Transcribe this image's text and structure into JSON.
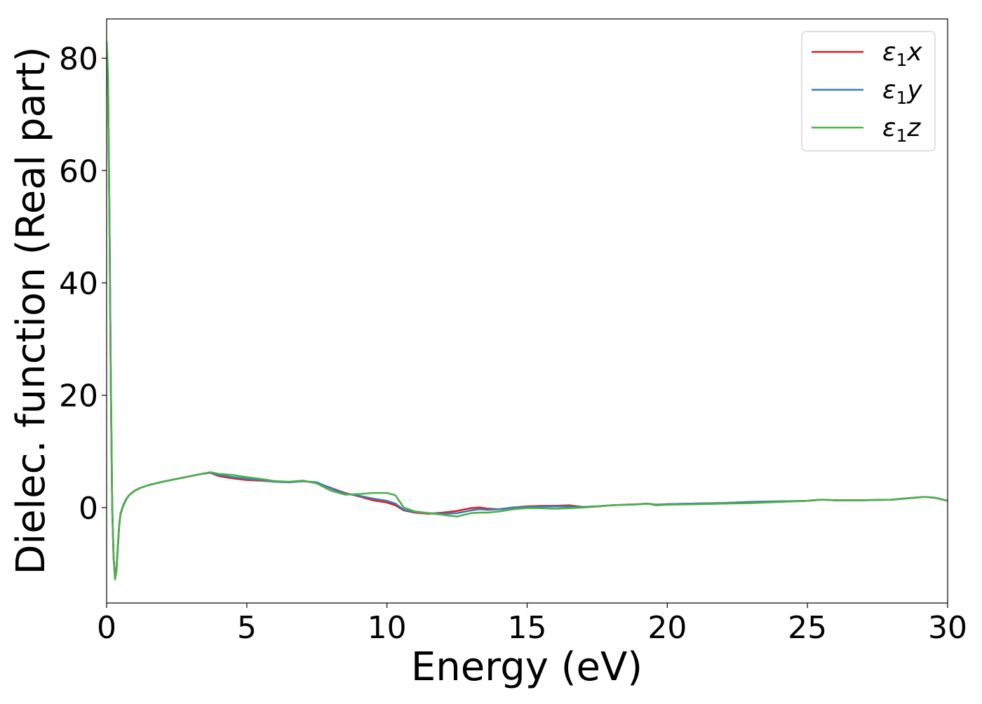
{
  "chart_data": {
    "type": "line",
    "xlabel": "Energy (eV)",
    "ylabel": "Dielec. function (Real part)",
    "xlim": [
      0,
      30
    ],
    "ylim": [
      -17,
      87
    ],
    "xticks": [
      0,
      5,
      10,
      15,
      20,
      25,
      30
    ],
    "yticks": [
      0,
      20,
      40,
      60,
      80
    ],
    "grid": false,
    "legend_position": "top-right",
    "series": [
      {
        "name": "ε₁x",
        "legend": {
          "main": "ε",
          "sub": "1",
          "tail": "x"
        },
        "color": "#e41a1c",
        "x": [
          0.0,
          0.05,
          0.1,
          0.15,
          0.2,
          0.25,
          0.3,
          0.35,
          0.4,
          0.45,
          0.5,
          0.6,
          0.7,
          0.8,
          1.0,
          1.2,
          1.5,
          2.0,
          2.5,
          3.0,
          3.4,
          3.7,
          4.0,
          4.5,
          5.0,
          5.5,
          6.0,
          6.5,
          7.0,
          7.5,
          8.0,
          8.5,
          9.0,
          9.5,
          10.0,
          10.3,
          10.6,
          11.0,
          11.5,
          12.0,
          12.5,
          13.0,
          13.3,
          13.6,
          14.0,
          14.5,
          15.0,
          15.5,
          16.0,
          16.5,
          17.0,
          17.5,
          18.0,
          18.5,
          19.0,
          19.3,
          19.6,
          20.0,
          21.0,
          22.0,
          23.0,
          24.0,
          25.0,
          25.5,
          26.0,
          27.0,
          28.0,
          28.7,
          29.2,
          29.6,
          30.0
        ],
        "y": [
          82,
          76,
          52,
          22,
          0,
          -9,
          -12.5,
          -11,
          -7,
          -3,
          -1,
          0.5,
          1.5,
          2.2,
          3.0,
          3.5,
          4.0,
          4.6,
          5.1,
          5.6,
          6.0,
          6.2,
          5.6,
          5.2,
          4.9,
          4.8,
          4.6,
          4.5,
          4.7,
          4.4,
          3.5,
          2.6,
          2.0,
          1.3,
          0.9,
          0.4,
          -0.5,
          -0.9,
          -1.1,
          -0.9,
          -0.6,
          -0.1,
          0.0,
          -0.2,
          -0.3,
          0.0,
          0.2,
          0.3,
          0.3,
          0.4,
          0.1,
          0.2,
          0.4,
          0.5,
          0.6,
          0.7,
          0.5,
          0.6,
          0.7,
          0.8,
          1.0,
          1.1,
          1.2,
          1.4,
          1.3,
          1.3,
          1.4,
          1.7,
          1.9,
          1.7,
          1.2
        ]
      },
      {
        "name": "ε₁y",
        "legend": {
          "main": "ε",
          "sub": "1",
          "tail": "y"
        },
        "color": "#377eb8",
        "x": [
          0.0,
          0.05,
          0.1,
          0.15,
          0.2,
          0.25,
          0.3,
          0.35,
          0.4,
          0.45,
          0.5,
          0.6,
          0.7,
          0.8,
          1.0,
          1.2,
          1.5,
          2.0,
          2.5,
          3.0,
          3.4,
          3.7,
          4.0,
          4.5,
          5.0,
          5.5,
          6.0,
          6.5,
          7.0,
          7.5,
          8.0,
          8.5,
          9.0,
          9.5,
          10.0,
          10.3,
          10.6,
          11.0,
          11.5,
          12.0,
          12.5,
          13.0,
          13.3,
          13.6,
          14.0,
          14.5,
          15.0,
          15.5,
          16.0,
          16.5,
          17.0,
          17.5,
          18.0,
          18.5,
          19.0,
          19.3,
          19.6,
          20.0,
          21.0,
          22.0,
          23.0,
          24.0,
          25.0,
          25.5,
          26.0,
          27.0,
          28.0,
          28.7,
          29.2,
          29.6,
          30.0
        ],
        "y": [
          82,
          76,
          52,
          22,
          0,
          -9,
          -12.5,
          -11,
          -7,
          -3,
          -1,
          0.5,
          1.5,
          2.2,
          3.0,
          3.5,
          4.0,
          4.6,
          5.1,
          5.6,
          6.0,
          6.2,
          5.8,
          5.4,
          5.1,
          4.9,
          4.6,
          4.5,
          4.7,
          4.5,
          3.4,
          2.5,
          2.1,
          1.6,
          1.2,
          0.7,
          -0.4,
          -0.8,
          -1.0,
          -1.1,
          -1.0,
          -0.5,
          -0.3,
          -0.4,
          -0.3,
          0.0,
          0.1,
          0.2,
          0.2,
          0.2,
          0.1,
          0.2,
          0.4,
          0.5,
          0.6,
          0.7,
          0.5,
          0.6,
          0.7,
          0.8,
          1.0,
          1.1,
          1.2,
          1.4,
          1.3,
          1.3,
          1.4,
          1.7,
          1.9,
          1.7,
          1.2
        ]
      },
      {
        "name": "ε₁z",
        "legend": {
          "main": "ε",
          "sub": "1",
          "tail": "z"
        },
        "color": "#4daf4a",
        "x": [
          0.0,
          0.05,
          0.1,
          0.15,
          0.2,
          0.25,
          0.3,
          0.35,
          0.4,
          0.45,
          0.5,
          0.6,
          0.7,
          0.8,
          1.0,
          1.2,
          1.5,
          2.0,
          2.5,
          3.0,
          3.4,
          3.7,
          4.0,
          4.5,
          5.0,
          5.5,
          6.0,
          6.5,
          7.0,
          7.5,
          8.0,
          8.5,
          9.0,
          9.5,
          10.0,
          10.3,
          10.6,
          11.0,
          11.5,
          12.0,
          12.5,
          13.0,
          13.3,
          13.6,
          14.0,
          14.5,
          15.0,
          15.5,
          16.0,
          16.5,
          17.0,
          17.5,
          18.0,
          18.5,
          19.0,
          19.3,
          19.6,
          20.0,
          21.0,
          22.0,
          23.0,
          24.0,
          25.0,
          25.5,
          26.0,
          27.0,
          28.0,
          28.7,
          29.2,
          29.6,
          30.0
        ],
        "y": [
          83,
          77,
          53,
          23,
          0,
          -9,
          -12.8,
          -11.5,
          -7.3,
          -3.2,
          -1.2,
          0.4,
          1.4,
          2.2,
          3.0,
          3.5,
          4.0,
          4.6,
          5.1,
          5.6,
          6.0,
          6.3,
          6.0,
          5.8,
          5.4,
          5.1,
          4.7,
          4.6,
          4.8,
          4.3,
          3.0,
          2.3,
          2.4,
          2.6,
          2.6,
          2.2,
          0.0,
          -0.7,
          -1.0,
          -1.3,
          -1.6,
          -1.0,
          -0.9,
          -0.9,
          -0.7,
          -0.3,
          -0.1,
          -0.1,
          -0.2,
          -0.1,
          0.0,
          0.2,
          0.4,
          0.5,
          0.6,
          0.7,
          0.4,
          0.5,
          0.6,
          0.7,
          0.8,
          1.0,
          1.2,
          1.4,
          1.3,
          1.3,
          1.4,
          1.7,
          1.9,
          1.7,
          1.2
        ]
      }
    ]
  }
}
